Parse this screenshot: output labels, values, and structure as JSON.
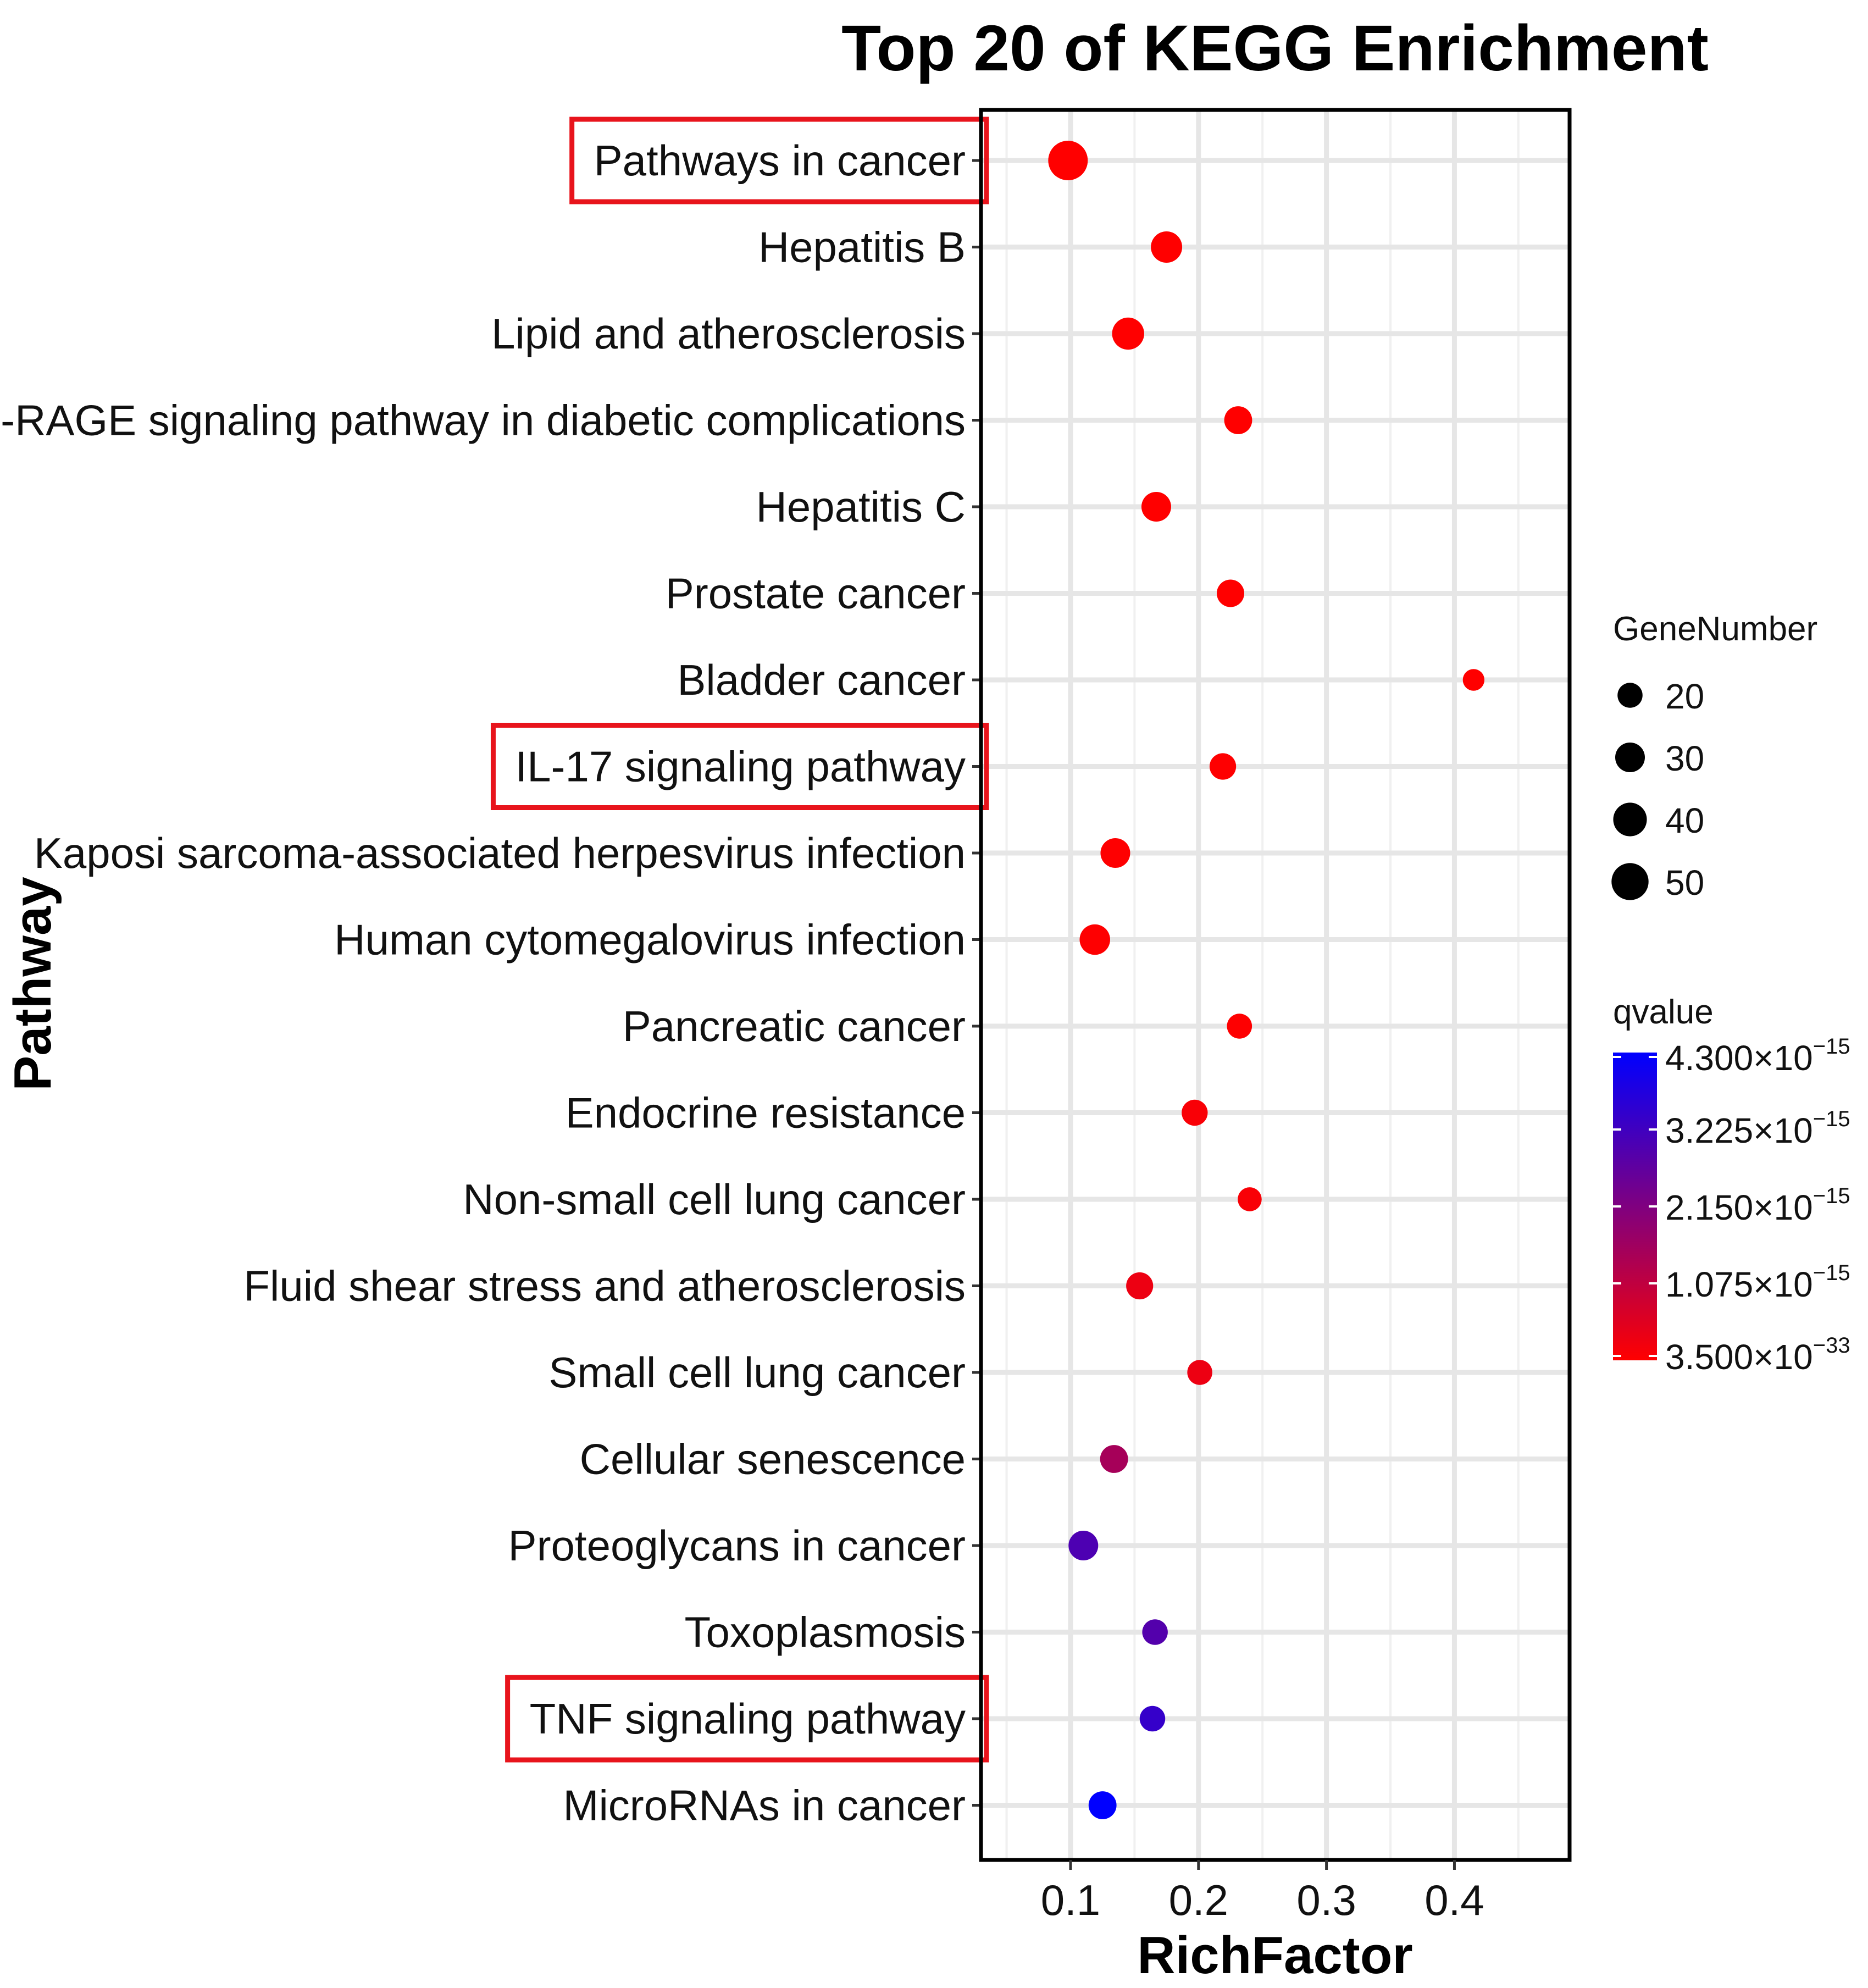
{
  "chart_data": {
    "type": "scatter",
    "title": "Top 20 of KEGG Enrichment",
    "xlabel": "RichFactor",
    "ylabel": "Pathway",
    "xlim": [
      0.03,
      0.49
    ],
    "xticks": [
      0.1,
      0.2,
      0.3,
      0.4
    ],
    "xtick_labels": [
      "0.1",
      "0.2",
      "0.3",
      "0.4"
    ],
    "grid": true,
    "categories": [
      "Pathways in cancer",
      "Hepatitis B",
      "Lipid and atherosclerosis",
      "AGE-RAGE signaling pathway in diabetic complications",
      "Hepatitis C",
      "Prostate cancer",
      "Bladder cancer",
      "IL-17 signaling pathway",
      "Kaposi sarcoma-associated herpesvirus infection",
      "Human cytomegalovirus infection",
      "Pancreatic cancer",
      "Endocrine resistance",
      "Non-small cell lung cancer",
      "Fluid shear stress and atherosclerosis",
      "Small cell lung cancer",
      "Cellular senescence",
      "Proteoglycans in cancer",
      "Toxoplasmosis",
      "TNF signaling pathway",
      "MicroRNAs in cancer"
    ],
    "highlighted": [
      "Pathways in cancer",
      "IL-17 signaling pathway",
      "TNF signaling pathway"
    ],
    "highlight_color": "#e8141c",
    "points": [
      {
        "pathway": "Pathways in cancer",
        "rich_factor": 0.098,
        "gene_number": 58,
        "qvalue": 3.5e-33
      },
      {
        "pathway": "Hepatitis B",
        "rich_factor": 0.175,
        "gene_number": 34,
        "qvalue": 1e-20
      },
      {
        "pathway": "Lipid and atherosclerosis",
        "rich_factor": 0.145,
        "gene_number": 36,
        "qvalue": 1e-19
      },
      {
        "pathway": "AGE-RAGE signaling pathway in diabetic complications",
        "rich_factor": 0.231,
        "gene_number": 26,
        "qvalue": 1e-19
      },
      {
        "pathway": "Hepatitis C",
        "rich_factor": 0.167,
        "gene_number": 30,
        "qvalue": 1e-18
      },
      {
        "pathway": "Prostate cancer",
        "rich_factor": 0.225,
        "gene_number": 25,
        "qvalue": 1e-18
      },
      {
        "pathway": "Bladder cancer",
        "rich_factor": 0.415,
        "gene_number": 14,
        "qvalue": 1e-18
      },
      {
        "pathway": "IL-17 signaling pathway",
        "rich_factor": 0.219,
        "gene_number": 23,
        "qvalue": 1e-17
      },
      {
        "pathway": "Kaposi sarcoma-associated herpesvirus infection",
        "rich_factor": 0.135,
        "gene_number": 30,
        "qvalue": 1e-17
      },
      {
        "pathway": "Human cytomegalovirus infection",
        "rich_factor": 0.119,
        "gene_number": 32,
        "qvalue": 1e-17
      },
      {
        "pathway": "Pancreatic cancer",
        "rich_factor": 0.232,
        "gene_number": 20,
        "qvalue": 1e-17
      },
      {
        "pathway": "Endocrine resistance",
        "rich_factor": 0.197,
        "gene_number": 22,
        "qvalue": 1e-16
      },
      {
        "pathway": "Non-small cell lung cancer",
        "rich_factor": 0.24,
        "gene_number": 18,
        "qvalue": 1e-16
      },
      {
        "pathway": "Fluid shear stress and atherosclerosis",
        "rich_factor": 0.154,
        "gene_number": 24,
        "qvalue": 3e-16
      },
      {
        "pathway": "Small cell lung cancer",
        "rich_factor": 0.201,
        "gene_number": 20,
        "qvalue": 3e-16
      },
      {
        "pathway": "Cellular senescence",
        "rich_factor": 0.134,
        "gene_number": 26,
        "qvalue": 1.5e-15
      },
      {
        "pathway": "Proteoglycans in cancer",
        "rich_factor": 0.11,
        "gene_number": 30,
        "qvalue": 3e-15
      },
      {
        "pathway": "Toxoplasmosis",
        "rich_factor": 0.166,
        "gene_number": 21,
        "qvalue": 2.9e-15
      },
      {
        "pathway": "TNF signaling pathway",
        "rich_factor": 0.164,
        "gene_number": 21,
        "qvalue": 3.4e-15
      },
      {
        "pathway": "MicroRNAs in cancer",
        "rich_factor": 0.125,
        "gene_number": 26,
        "qvalue": 4.3e-15
      }
    ],
    "size_legend": {
      "title": "GeneNumber",
      "values": [
        20,
        30,
        40,
        50
      ],
      "labels": [
        "20",
        "30",
        "40",
        "50"
      ]
    },
    "color_legend": {
      "title": "qvalue",
      "low": 3.5e-33,
      "high": 4.3e-15,
      "low_color": "#ff0000",
      "high_color": "#0000ff",
      "ticks": [
        {
          "value": 4.3e-15,
          "mantissa": "4.300×10",
          "exponent": "−15"
        },
        {
          "value": 3.225e-15,
          "mantissa": "3.225×10",
          "exponent": "−15"
        },
        {
          "value": 2.15e-15,
          "mantissa": "2.150×10",
          "exponent": "−15"
        },
        {
          "value": 1.075e-15,
          "mantissa": "1.075×10",
          "exponent": "−15"
        },
        {
          "value": 3.5e-33,
          "mantissa": "3.500×10",
          "exponent": "−33"
        }
      ]
    }
  }
}
